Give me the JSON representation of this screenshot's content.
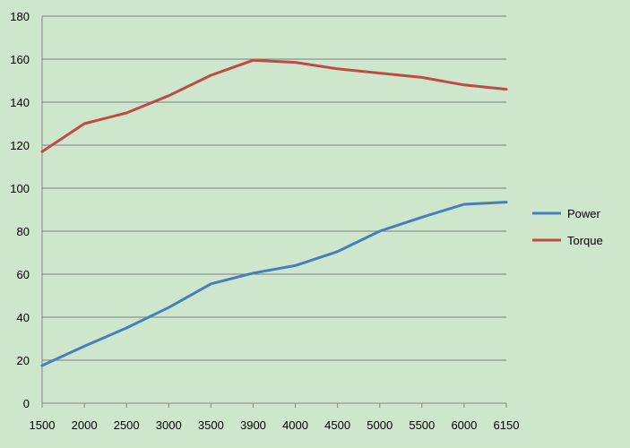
{
  "chart_data": {
    "type": "line",
    "categories": [
      "1500",
      "2000",
      "2500",
      "3000",
      "3500",
      "3900",
      "4000",
      "4500",
      "5000",
      "5500",
      "6000",
      "6150"
    ],
    "series": [
      {
        "name": "Power",
        "color": "#4a7ebb",
        "values": [
          17.5,
          26.5,
          35,
          44.5,
          55.5,
          60.5,
          64,
          70.5,
          80,
          86.5,
          92.5,
          93.5
        ]
      },
      {
        "name": "Torque",
        "color": "#be4b48",
        "values": [
          117,
          130,
          135,
          143,
          152.5,
          159.5,
          158.5,
          155.5,
          153.5,
          151.5,
          148,
          146
        ]
      }
    ],
    "ylim": [
      0,
      180
    ],
    "yticks": [
      0,
      20,
      40,
      60,
      80,
      100,
      120,
      140,
      160,
      180
    ],
    "grid": "horizontal",
    "legend_position": "right",
    "background": "#cde6cc",
    "gridline_color": "#7f7f7f",
    "axis_color": "#868686"
  }
}
